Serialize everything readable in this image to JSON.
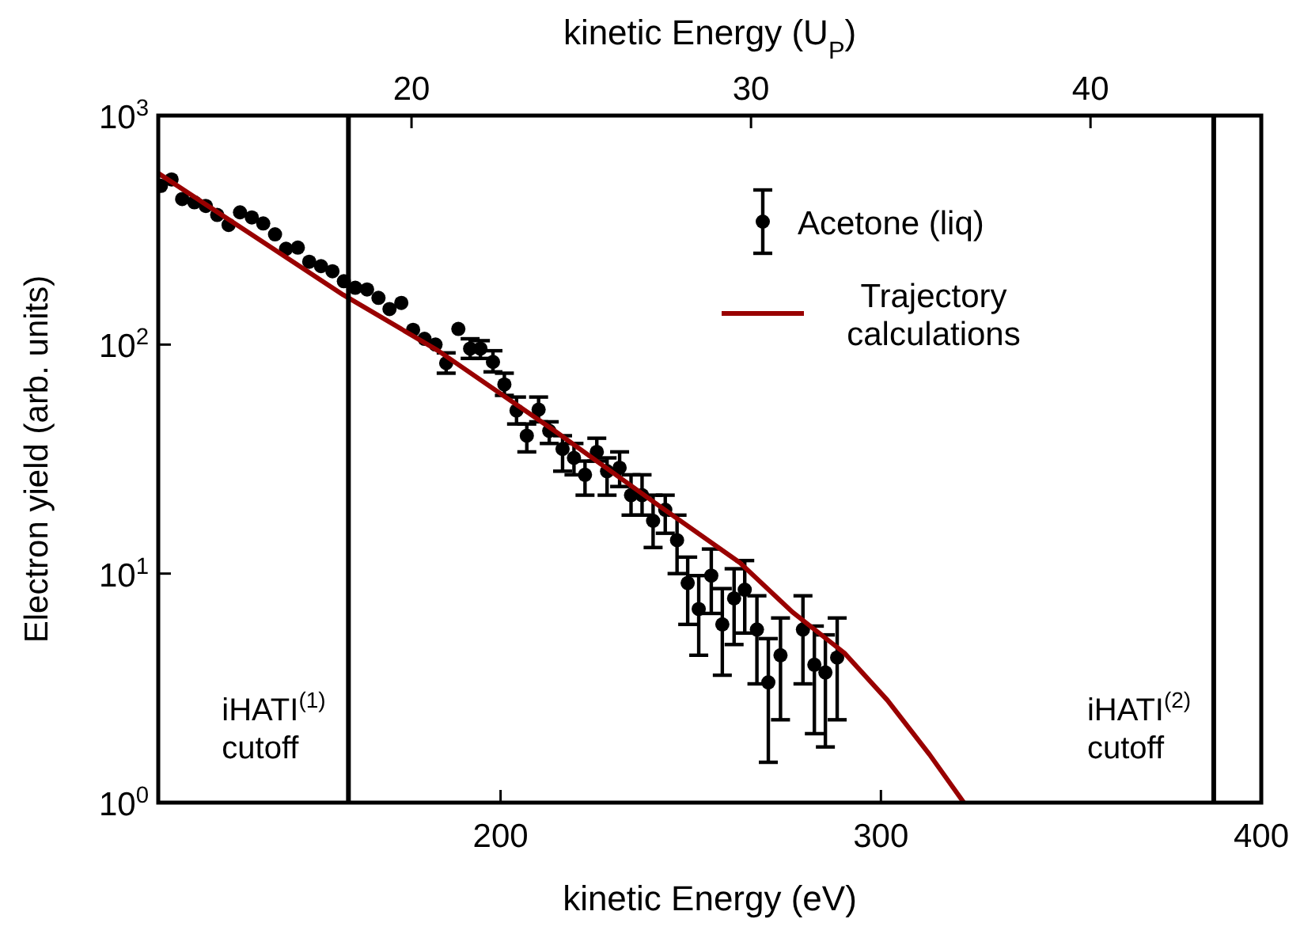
{
  "chart_data": {
    "type": "scatter",
    "xlabel": "kinetic Energy (eV)",
    "ylabel": "Electron yield (arb. units)",
    "x2label": "kinetic Energy (U$_{P}$)",
    "xlim": [
      110,
      400
    ],
    "xticks": [
      200,
      300,
      400
    ],
    "x2lim": [
      12.54,
      45.03
    ],
    "x2ticks": [
      20,
      30,
      40
    ],
    "ylim": [
      1,
      1000
    ],
    "yticks": [
      {
        "value": 1,
        "label": "10$^{0}$"
      },
      {
        "value": 10,
        "label": "10$^{1}$"
      },
      {
        "value": 100,
        "label": "10$^{2}$"
      },
      {
        "value": 1000,
        "label": "10$^{3}$"
      }
    ],
    "log": "y",
    "grid": false,
    "legend": "top right",
    "marker": "circle",
    "series": [
      {
        "name": "Acetone (liq)",
        "type": "scatter",
        "color": "#000000",
        "x": [
          110.7,
          113.5,
          116.3,
          119.5,
          122.5,
          125.5,
          128.5,
          131.5,
          134.6,
          137.6,
          140.7,
          143.6,
          146.7,
          149.7,
          152.8,
          155.8,
          158.8,
          161.8,
          164.9,
          167.9,
          170.8,
          173.9,
          177.0,
          180.0,
          182.9,
          185.7,
          188.9,
          192.0,
          194.7,
          198.0,
          201.0,
          204.2,
          206.9,
          210.0,
          212.8,
          216.3,
          219.3,
          222.2,
          225.3,
          228.0,
          231.3,
          234.3,
          237.2,
          240.1,
          243.3,
          246.4,
          249.2,
          252.1,
          255.4,
          258.3,
          261.4,
          264.2,
          267.4,
          270.4,
          273.6,
          279.5,
          282.5,
          285.4,
          288.5
        ],
        "values": [
          493,
          526,
          432,
          418,
          403,
          368,
          333,
          378,
          359,
          338,
          303,
          262,
          265,
          230,
          220,
          209,
          189,
          177,
          174,
          160,
          143,
          152,
          116,
          106,
          100,
          83,
          117,
          96,
          96,
          84,
          67,
          51.5,
          40,
          52,
          42,
          35,
          32,
          27,
          34,
          28,
          29,
          22,
          22,
          17,
          19,
          14,
          9.1,
          7.0,
          9.8,
          6.0,
          7.8,
          8.5,
          5.7,
          3.35,
          4.4,
          5.7,
          4.0,
          3.7,
          4.3
        ],
        "errors": [
          null,
          null,
          null,
          null,
          null,
          null,
          null,
          null,
          null,
          null,
          null,
          null,
          null,
          null,
          null,
          null,
          null,
          null,
          null,
          null,
          null,
          null,
          null,
          null,
          null,
          [
            75,
            92
          ],
          null,
          [
            87,
            106
          ],
          [
            87,
            104
          ],
          [
            76,
            94
          ],
          [
            60,
            75
          ],
          [
            45,
            59
          ],
          [
            34,
            45
          ],
          [
            46,
            59
          ],
          [
            37,
            46
          ],
          [
            28,
            40
          ],
          [
            27,
            37
          ],
          [
            22,
            31
          ],
          [
            31,
            39
          ],
          [
            22,
            32
          ],
          [
            24,
            34
          ],
          [
            18,
            27
          ],
          [
            18,
            27
          ],
          [
            13,
            22
          ],
          [
            15,
            22
          ],
          [
            10,
            18
          ],
          [
            6.0,
            11.8
          ],
          [
            4.4,
            9.8
          ],
          [
            6.7,
            12.8
          ],
          [
            3.6,
            8.6
          ],
          [
            4.9,
            10.5
          ],
          [
            5.5,
            11.4
          ],
          [
            3.3,
            8.0
          ],
          [
            1.5,
            5.2
          ],
          [
            2.3,
            6.4
          ],
          [
            3.3,
            8.0
          ],
          [
            2.0,
            5.9
          ],
          [
            1.75,
            5.4
          ],
          [
            2.3,
            6.4
          ]
        ]
      },
      {
        "name": "Trajectory calculations",
        "type": "line",
        "color": "#990000",
        "marker": "none",
        "x": [
          110,
          135,
          158.6,
          183.6,
          214.2,
          242.0,
          262.8,
          276.7,
          290.4,
          301.7,
          312.8,
          321.8
        ],
        "values": [
          560,
          299,
          165,
          94,
          42,
          19.6,
          11.2,
          6.8,
          4.5,
          2.8,
          1.62,
          1.0
        ]
      }
    ],
    "ref_lines": [
      {
        "axis": "x",
        "value": 160,
        "label": "iHATI$^{(1)}$\ncutoff",
        "color": "#000000"
      },
      {
        "axis": "x",
        "value": 387.5,
        "label": "iHATI$^{(2)}$\ncutoff",
        "color": "#000000"
      }
    ]
  }
}
